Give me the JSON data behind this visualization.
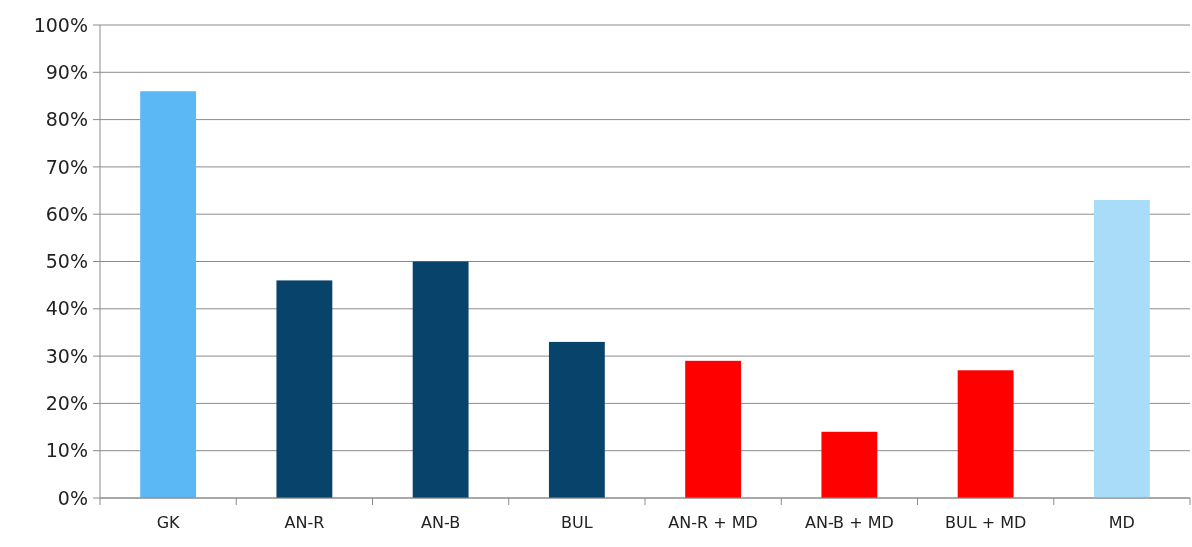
{
  "chart_data": {
    "type": "bar",
    "categories": [
      "GK",
      "AN-R",
      "AN-B",
      "BUL",
      "AN-R + MD",
      "AN-B + MD",
      "BUL + MD",
      "MD"
    ],
    "values": [
      86,
      46,
      50,
      33,
      29,
      14,
      27,
      63
    ],
    "colors": [
      "#5bb8f5",
      "#08436b",
      "#08436b",
      "#08436b",
      "#ff0000",
      "#ff0000",
      "#ff0000",
      "#a8dcf9"
    ],
    "ylim": [
      0,
      100
    ],
    "yticks": [
      {
        "value": 0,
        "label": "0%"
      },
      {
        "value": 10,
        "label": "10%"
      },
      {
        "value": 20,
        "label": "20%"
      },
      {
        "value": 30,
        "label": "30%"
      },
      {
        "value": 40,
        "label": "40%"
      },
      {
        "value": 50,
        "label": "50%"
      },
      {
        "value": 60,
        "label": "60%"
      },
      {
        "value": 70,
        "label": "70%"
      },
      {
        "value": 80,
        "label": "80%"
      },
      {
        "value": 90,
        "label": "90%"
      },
      {
        "value": 100,
        "label": "100%"
      }
    ],
    "grid": "y"
  }
}
